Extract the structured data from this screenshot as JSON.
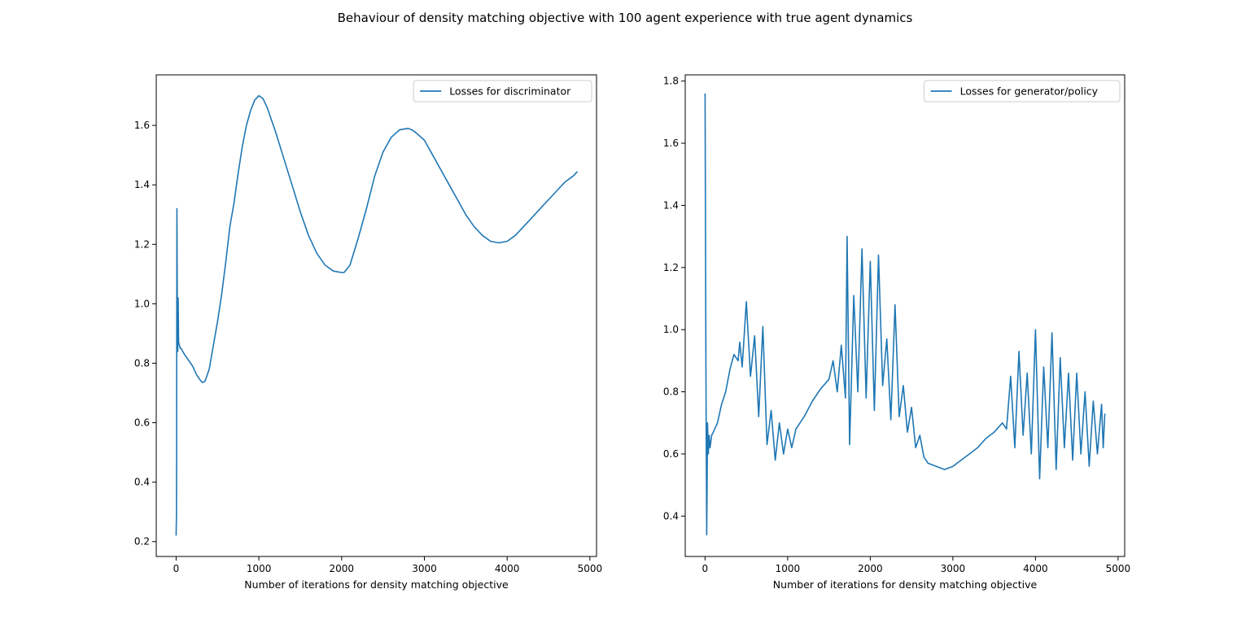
{
  "figure": {
    "title": "Behaviour of density matching objective with 100 agent experience with true agent dynamics"
  },
  "colors": {
    "series": "#1f77b4",
    "axes": "#000000",
    "background": "#ffffff"
  },
  "chart_data": [
    {
      "type": "line",
      "title": "",
      "xlabel": "Number of iterations for density matching objective",
      "ylabel": "",
      "xlim": [
        -240,
        5080
      ],
      "ylim": [
        0.15,
        1.77
      ],
      "xticks": [
        0,
        1000,
        2000,
        3000,
        4000,
        5000
      ],
      "xtick_labels": [
        "0",
        "1000",
        "2000",
        "3000",
        "4000",
        "5000"
      ],
      "yticks": [
        0.2,
        0.4,
        0.6,
        0.8,
        1.0,
        1.2,
        1.4,
        1.6
      ],
      "ytick_labels": [
        "0.2",
        "0.4",
        "0.6",
        "0.8",
        "1.0",
        "1.2",
        "1.4",
        "1.6"
      ],
      "grid": false,
      "legend_position": "top-right",
      "series": [
        {
          "name": "Losses for discriminator",
          "x": [
            0,
            5,
            10,
            15,
            20,
            25,
            30,
            40,
            50,
            60,
            80,
            100,
            150,
            200,
            250,
            300,
            320,
            350,
            400,
            450,
            500,
            550,
            600,
            650,
            700,
            750,
            800,
            850,
            900,
            950,
            1000,
            1050,
            1100,
            1200,
            1300,
            1400,
            1500,
            1600,
            1700,
            1800,
            1900,
            2000,
            2030,
            2100,
            2200,
            2300,
            2400,
            2500,
            2600,
            2700,
            2800,
            2850,
            2900,
            3000,
            3100,
            3200,
            3300,
            3400,
            3500,
            3600,
            3700,
            3800,
            3900,
            4000,
            4100,
            4200,
            4300,
            4400,
            4500,
            4600,
            4700,
            4800,
            4850
          ],
          "y": [
            0.22,
            0.3,
            1.32,
            0.98,
            0.84,
            1.02,
            0.87,
            0.86,
            0.85,
            0.85,
            0.84,
            0.83,
            0.81,
            0.79,
            0.76,
            0.74,
            0.735,
            0.74,
            0.78,
            0.86,
            0.94,
            1.03,
            1.14,
            1.26,
            1.34,
            1.44,
            1.53,
            1.6,
            1.65,
            1.685,
            1.7,
            1.69,
            1.66,
            1.58,
            1.49,
            1.4,
            1.31,
            1.23,
            1.17,
            1.13,
            1.11,
            1.105,
            1.105,
            1.13,
            1.22,
            1.32,
            1.43,
            1.51,
            1.56,
            1.585,
            1.59,
            1.585,
            1.575,
            1.55,
            1.5,
            1.45,
            1.4,
            1.35,
            1.3,
            1.26,
            1.23,
            1.21,
            1.205,
            1.21,
            1.23,
            1.26,
            1.29,
            1.32,
            1.35,
            1.38,
            1.41,
            1.43,
            1.445
          ]
        }
      ]
    },
    {
      "type": "line",
      "title": "",
      "xlabel": "Number of iterations for density matching objective",
      "ylabel": "",
      "xlim": [
        -240,
        5080
      ],
      "ylim": [
        0.27,
        1.82
      ],
      "xticks": [
        0,
        1000,
        2000,
        3000,
        4000,
        5000
      ],
      "xtick_labels": [
        "0",
        "1000",
        "2000",
        "3000",
        "4000",
        "5000"
      ],
      "yticks": [
        0.4,
        0.6,
        0.8,
        1.0,
        1.2,
        1.4,
        1.6,
        1.8
      ],
      "ytick_labels": [
        "0.4",
        "0.6",
        "0.8",
        "1.0",
        "1.2",
        "1.4",
        "1.6",
        "1.8"
      ],
      "grid": false,
      "legend_position": "top-right",
      "series": [
        {
          "name": "Losses for generator/policy",
          "x": [
            0,
            10,
            15,
            20,
            25,
            30,
            40,
            50,
            60,
            80,
            100,
            150,
            200,
            250,
            300,
            350,
            400,
            420,
            450,
            500,
            550,
            600,
            650,
            700,
            750,
            800,
            850,
            900,
            950,
            1000,
            1050,
            1100,
            1200,
            1300,
            1400,
            1500,
            1550,
            1600,
            1650,
            1700,
            1720,
            1750,
            1800,
            1850,
            1900,
            1950,
            2000,
            2050,
            2100,
            2150,
            2200,
            2250,
            2300,
            2350,
            2400,
            2450,
            2500,
            2550,
            2600,
            2650,
            2700,
            2800,
            2900,
            3000,
            3100,
            3200,
            3300,
            3400,
            3500,
            3600,
            3650,
            3700,
            3750,
            3800,
            3850,
            3900,
            3950,
            4000,
            4050,
            4100,
            4150,
            4200,
            4250,
            4300,
            4350,
            4400,
            4450,
            4500,
            4550,
            4600,
            4650,
            4700,
            4750,
            4800,
            4820,
            4840
          ],
          "y": [
            1.76,
            0.9,
            0.6,
            0.34,
            0.5,
            0.7,
            0.6,
            0.66,
            0.62,
            0.66,
            0.67,
            0.7,
            0.76,
            0.8,
            0.87,
            0.92,
            0.9,
            0.96,
            0.88,
            1.09,
            0.85,
            0.98,
            0.72,
            1.01,
            0.63,
            0.74,
            0.58,
            0.7,
            0.6,
            0.68,
            0.62,
            0.68,
            0.72,
            0.77,
            0.81,
            0.84,
            0.9,
            0.8,
            0.95,
            0.78,
            1.3,
            0.63,
            1.11,
            0.8,
            1.26,
            0.78,
            1.22,
            0.74,
            1.24,
            0.82,
            0.97,
            0.71,
            1.08,
            0.72,
            0.82,
            0.67,
            0.75,
            0.62,
            0.66,
            0.59,
            0.57,
            0.56,
            0.55,
            0.56,
            0.58,
            0.6,
            0.62,
            0.65,
            0.67,
            0.7,
            0.68,
            0.85,
            0.62,
            0.93,
            0.66,
            0.86,
            0.6,
            1.0,
            0.52,
            0.88,
            0.62,
            0.99,
            0.55,
            0.91,
            0.62,
            0.86,
            0.58,
            0.86,
            0.6,
            0.8,
            0.56,
            0.77,
            0.6,
            0.76,
            0.62,
            0.73
          ]
        }
      ]
    }
  ]
}
